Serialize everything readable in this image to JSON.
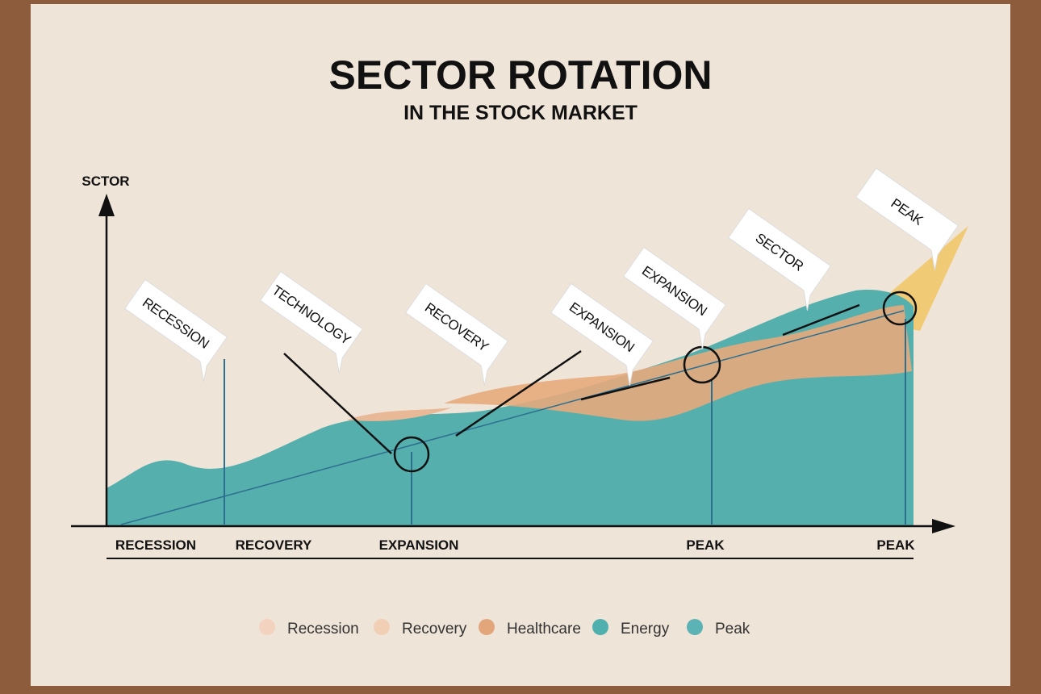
{
  "header": {
    "title": "SECTOR ROTATION",
    "subtitle": "IN THE STOCK MARKET"
  },
  "axis": {
    "y_label": "SCTOR",
    "x_labels": [
      "RECESSION",
      "RECOVERY",
      "EXPANSION",
      "PEAK",
      "PEAK"
    ]
  },
  "flags": [
    "RECESSION",
    "TECHNOLOGY",
    "RECOVERY",
    "EXPANSION",
    "EXPANSION",
    "SECTOR",
    "PEAK"
  ],
  "legend": [
    {
      "label": "Recession",
      "color": "#f3d2bf"
    },
    {
      "label": "Recovery",
      "color": "#f1cfb4"
    },
    {
      "label": "Healthcare",
      "color": "#e3a57a"
    },
    {
      "label": "Energy",
      "color": "#4fb0ad"
    },
    {
      "label": "Peak",
      "color": "#5bb3b5"
    }
  ]
}
